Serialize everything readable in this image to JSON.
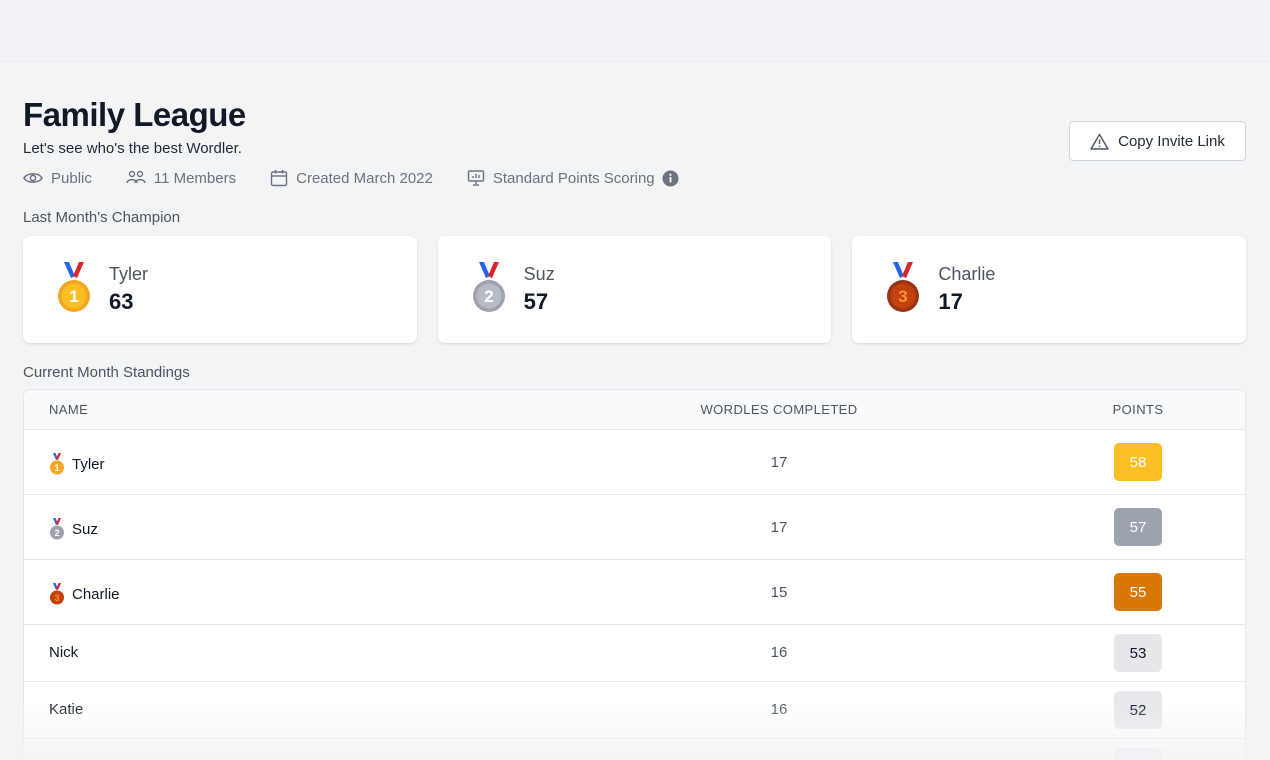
{
  "league": {
    "title": "Family League",
    "subtitle": "Let's see who's the best Wordler.",
    "meta": {
      "visibility": "Public",
      "members": "11 Members",
      "created": "Created March 2022",
      "scoring": "Standard Points Scoring"
    },
    "invite_label": "Copy Invite Link"
  },
  "champions": {
    "section_label": "Last Month's Champion",
    "items": [
      {
        "rank": "1",
        "name": "Tyler",
        "points": "63",
        "medal_color": "#f5a623"
      },
      {
        "rank": "2",
        "name": "Suz",
        "points": "57",
        "medal_color": "#9ca3af"
      },
      {
        "rank": "3",
        "name": "Charlie",
        "points": "17",
        "medal_color": "#c2410c"
      }
    ]
  },
  "standings": {
    "section_label": "Current Month Standings",
    "columns": {
      "name": "NAME",
      "wordles": "WORDLES COMPLETED",
      "points": "POINTS"
    },
    "rows": [
      {
        "name": "Tyler",
        "wordles": "17",
        "points": "58",
        "medal": "gold",
        "badge_bg": "#fbbf24",
        "badge_fg": "#ffffff"
      },
      {
        "name": "Suz",
        "wordles": "17",
        "points": "57",
        "medal": "silver",
        "badge_bg": "#9ca3af",
        "badge_fg": "#ffffff"
      },
      {
        "name": "Charlie",
        "wordles": "15",
        "points": "55",
        "medal": "bronze",
        "badge_bg": "#d97706",
        "badge_fg": "#ffffff"
      },
      {
        "name": "Nick",
        "wordles": "16",
        "points": "53",
        "medal": "none",
        "badge_bg": "#e5e7eb",
        "badge_fg": "#111827"
      },
      {
        "name": "Katie",
        "wordles": "16",
        "points": "52",
        "medal": "none",
        "badge_bg": "#e5e7eb",
        "badge_fg": "#111827"
      }
    ]
  }
}
